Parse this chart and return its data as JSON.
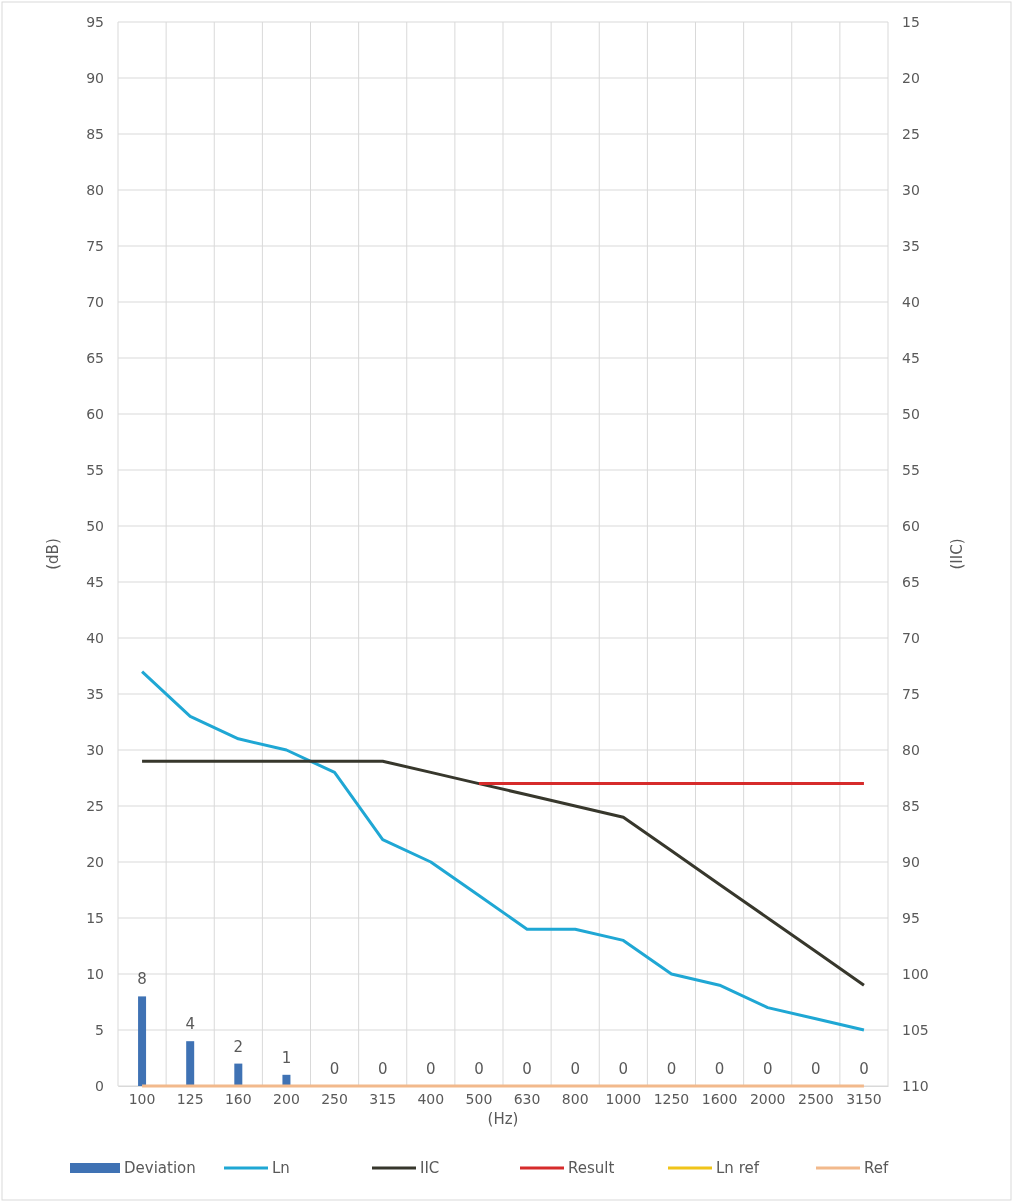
{
  "chart_data": {
    "type": "line",
    "xlabel": "(Hz)",
    "ylabel": "(dB)",
    "y2label": "(IIC)",
    "categories": [
      "100",
      "125",
      "160",
      "200",
      "250",
      "315",
      "400",
      "500",
      "630",
      "800",
      "1000",
      "1250",
      "1600",
      "2000",
      "2500",
      "3150"
    ],
    "ylim": [
      0,
      95
    ],
    "yticks": [
      0,
      5,
      10,
      15,
      20,
      25,
      30,
      35,
      40,
      45,
      50,
      55,
      60,
      65,
      70,
      75,
      80,
      85,
      90,
      95
    ],
    "y2lim": [
      110,
      15
    ],
    "y2ticks": [
      110,
      105,
      100,
      95,
      90,
      85,
      80,
      75,
      70,
      65,
      60,
      55,
      50,
      45,
      40,
      35,
      30,
      25,
      20,
      15
    ],
    "grid": true,
    "legend": "bottom",
    "series": [
      {
        "name": "Deviation",
        "type": "bar",
        "color": "#3f72b4",
        "values": [
          8,
          4,
          2,
          1,
          0,
          0,
          0,
          0,
          0,
          0,
          0,
          0,
          0,
          0,
          0,
          0
        ],
        "value_labels": [
          "8",
          "4",
          "2",
          "1",
          "0",
          "0",
          "0",
          "0",
          "0",
          "0",
          "0",
          "0",
          "0",
          "0",
          "0",
          "0"
        ]
      },
      {
        "name": "Ln",
        "color": "#1fa7d4",
        "values": [
          37,
          33,
          31,
          30,
          28,
          22,
          20,
          17,
          14,
          14,
          13,
          10,
          9,
          7,
          6,
          5
        ]
      },
      {
        "name": "IIC",
        "color": "#37372c",
        "values": [
          29,
          29,
          29,
          29,
          29,
          29,
          28,
          27,
          26,
          25,
          24,
          21,
          18,
          15,
          12,
          9
        ]
      },
      {
        "name": "Result",
        "color": "#d62b2b",
        "values": [
          null,
          null,
          null,
          null,
          null,
          null,
          null,
          27,
          27,
          27,
          27,
          27,
          27,
          27,
          27,
          27
        ]
      },
      {
        "name": "Ln ref",
        "color": "#f0c419",
        "values": [
          null,
          null,
          null,
          null,
          null,
          null,
          null,
          null,
          null,
          null,
          null,
          null,
          null,
          null,
          null,
          null
        ]
      },
      {
        "name": "Ref",
        "color": "#f2b98c",
        "values": [
          0,
          0,
          0,
          0,
          0,
          0,
          0,
          0,
          0,
          0,
          0,
          0,
          0,
          0,
          0,
          0
        ]
      }
    ]
  }
}
